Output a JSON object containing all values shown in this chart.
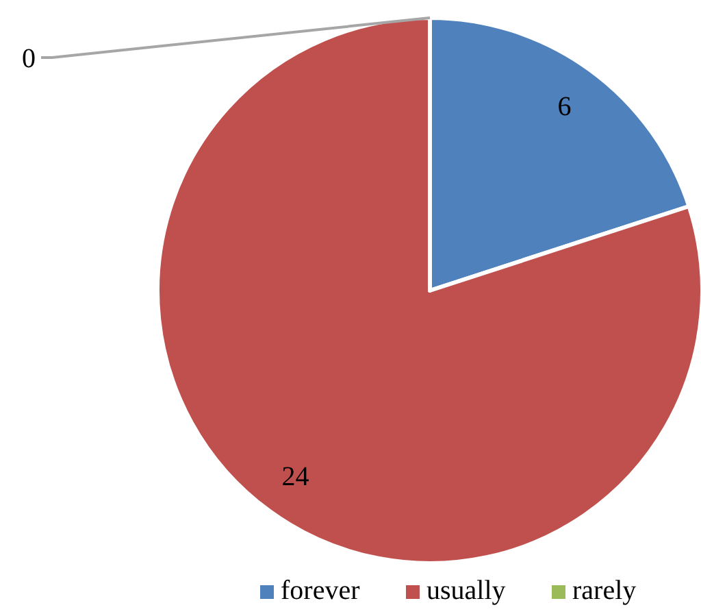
{
  "chart_data": {
    "type": "pie",
    "categories": [
      "forever",
      "usually",
      "rarely"
    ],
    "values": [
      6,
      24,
      0
    ],
    "colors": [
      "#4f81bd",
      "#c0504d",
      "#9bbb59"
    ],
    "value_labels": [
      "6",
      "24",
      "0"
    ],
    "legend": "bottom"
  }
}
